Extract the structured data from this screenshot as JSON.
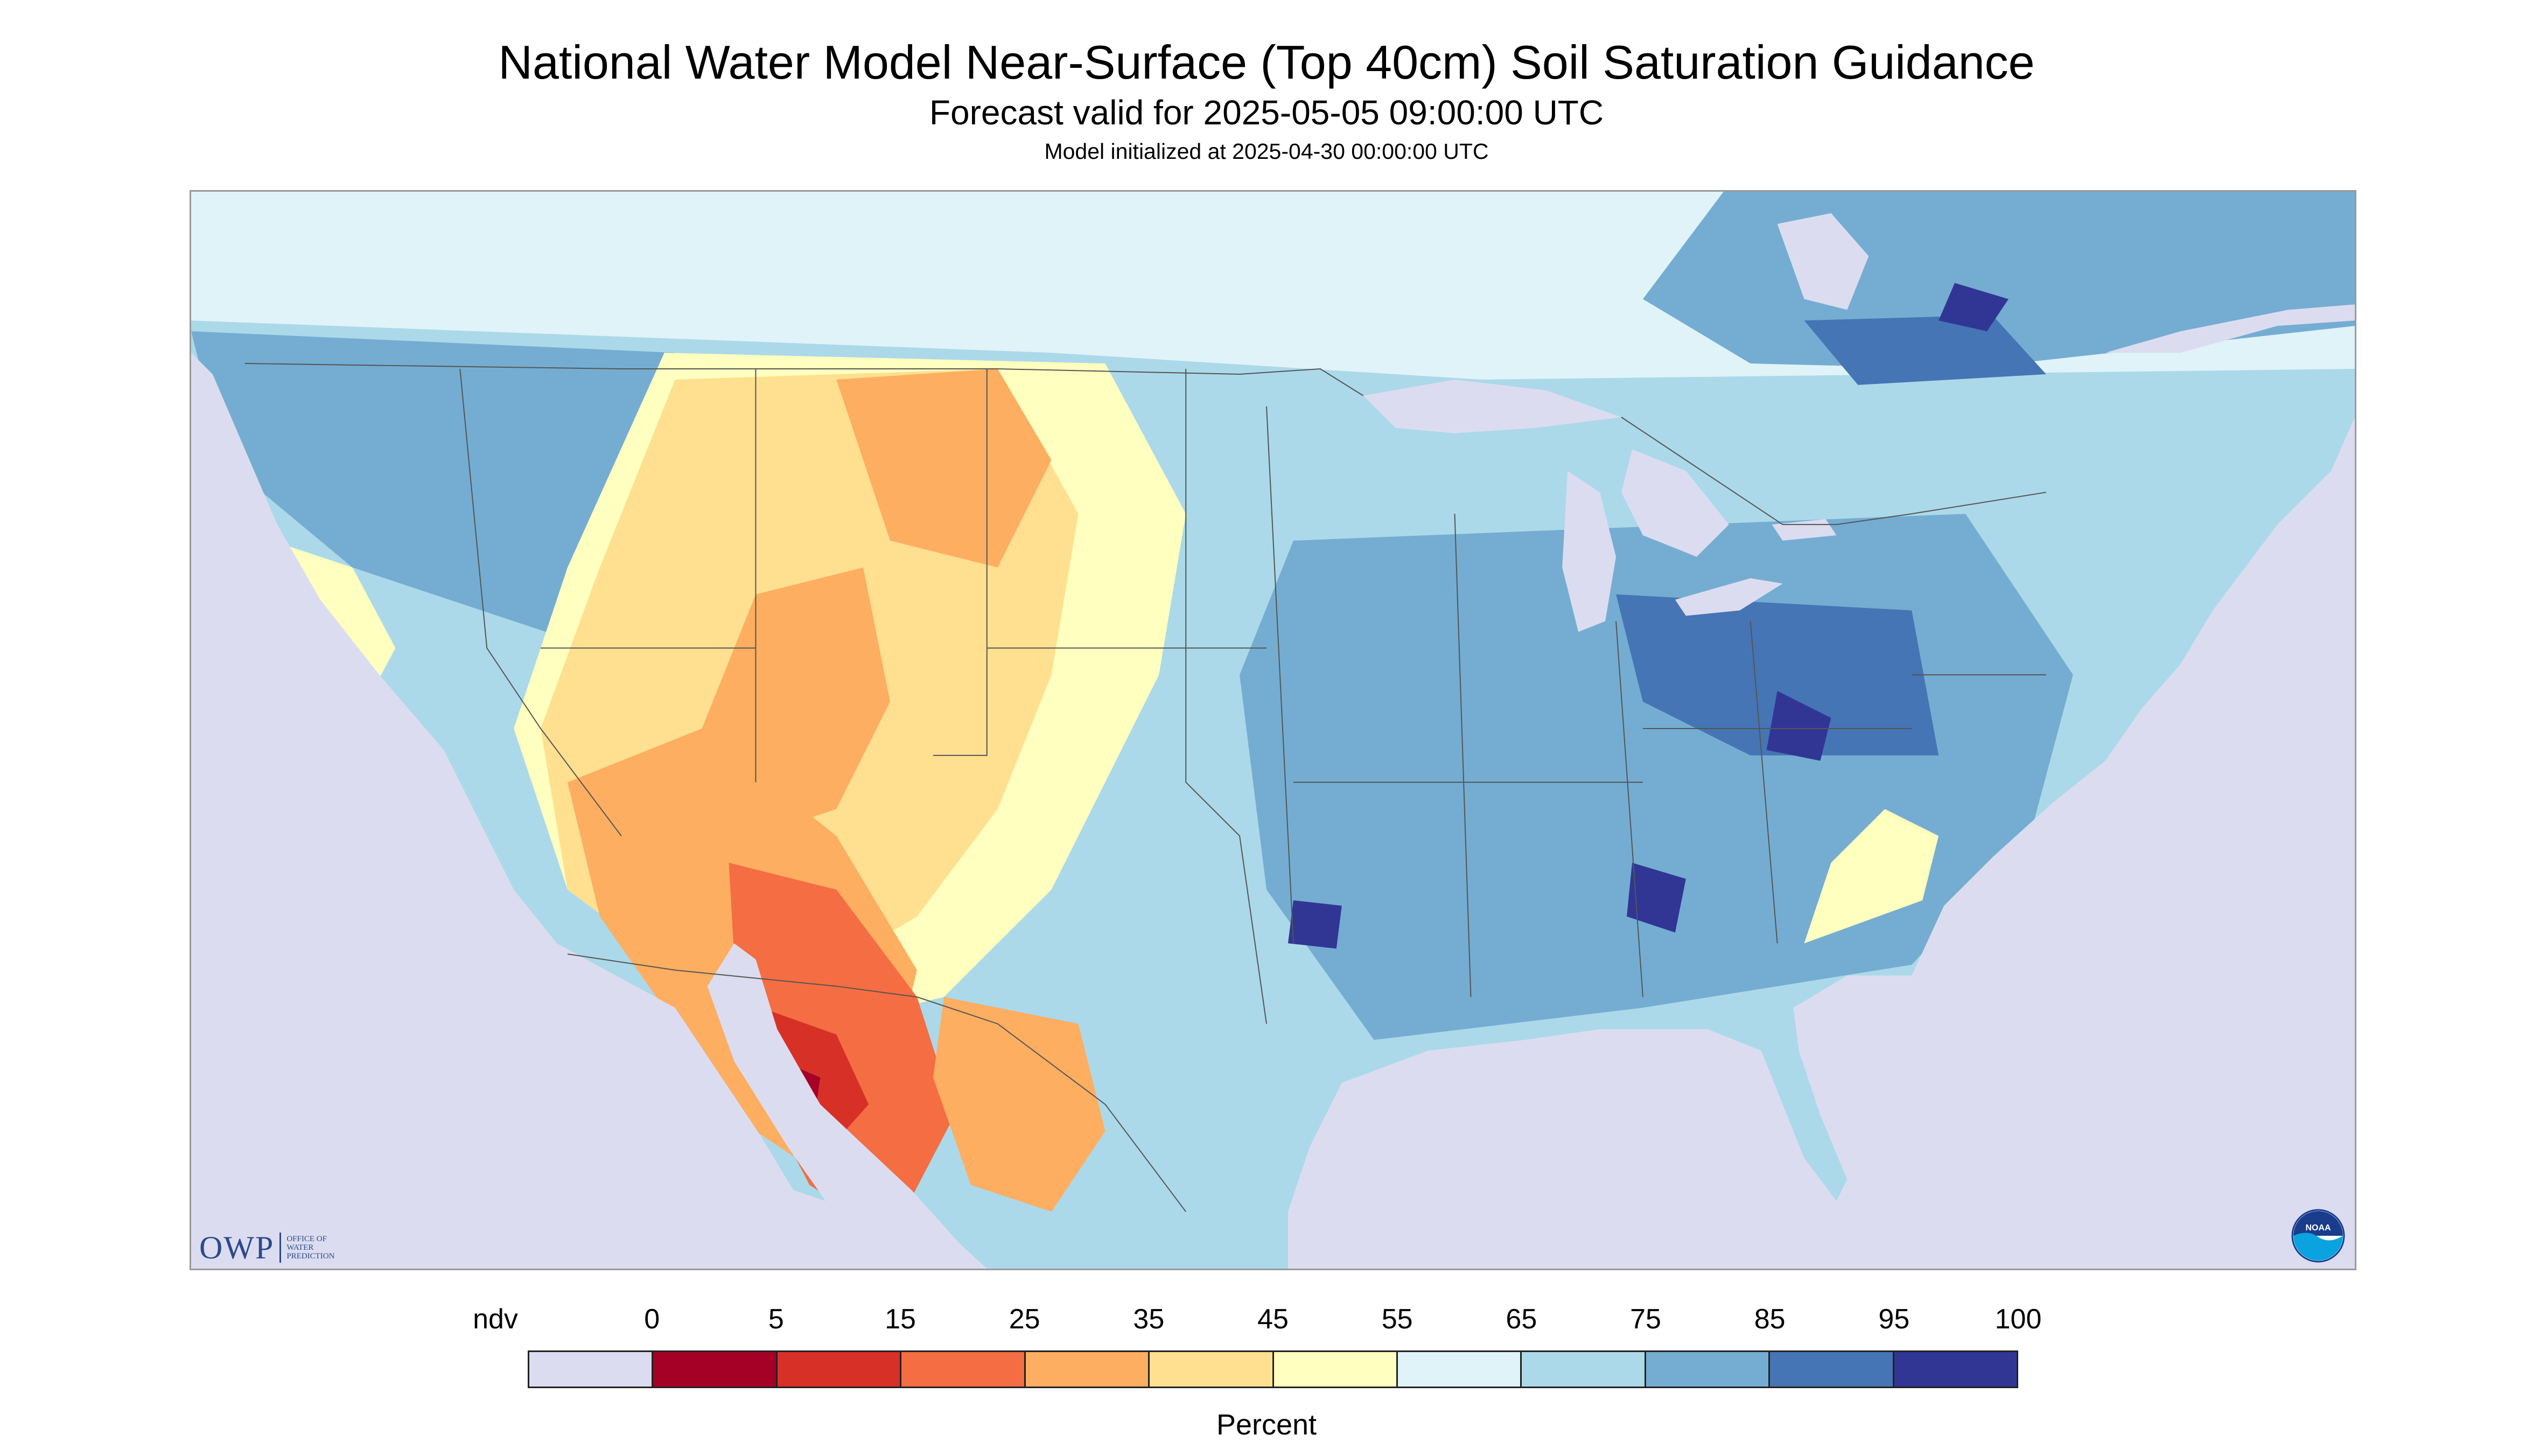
{
  "header": {
    "title": "National Water Model Near-Surface (Top 40cm) Soil Saturation Guidance",
    "subtitle": "Forecast valid for 2025-05-05 09:00:00 UTC",
    "init": "Model initialized at 2025-04-30 00:00:00 UTC"
  },
  "logos": {
    "owp_text": "OWP",
    "owp_sub_1": "OFFICE OF",
    "owp_sub_2": "WATER",
    "owp_sub_3": "PREDICTION",
    "noaa": "NOAA"
  },
  "legend": {
    "unit": "Percent",
    "labels": [
      "ndv",
      "0",
      "5",
      "15",
      "25",
      "35",
      "45",
      "55",
      "65",
      "75",
      "85",
      "95",
      "100"
    ],
    "colors": [
      "#dcdcf0",
      "#a50026",
      "#d73027",
      "#f46d43",
      "#fdae61",
      "#fee090",
      "#ffffbf",
      "#e0f3f8",
      "#abd9e9",
      "#74add1",
      "#4575b4",
      "#313695"
    ]
  },
  "map": {
    "colors": {
      "background": "#dcdcf0",
      "water": "#dcdcf0",
      "very_dry": "#a50026",
      "dry": "#d73027",
      "orange": "#f46d43",
      "light_orange": "#fdae61",
      "tan": "#fee090",
      "pale_yellow": "#ffffbf",
      "pale_blue": "#e0f3f8",
      "light_blue": "#abd9e9",
      "mid_blue": "#74add1",
      "blue": "#4575b4",
      "dark_blue": "#313695"
    }
  }
}
